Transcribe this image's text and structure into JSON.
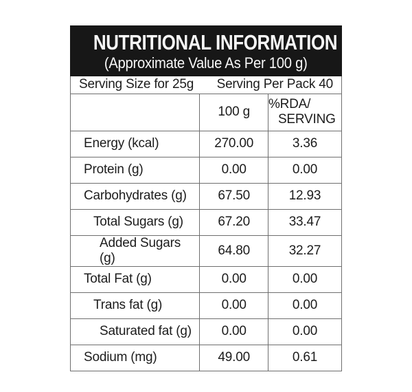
{
  "header": {
    "title": "NUTRITIONAL INFORMATION",
    "subtitle": "(Approximate Value As Per 100 g)"
  },
  "serving": {
    "size_label": "Serving Size for 25g",
    "per_pack_label": "Serving Per Pack 40"
  },
  "table": {
    "columns": {
      "nutrient": "",
      "amount": "100 g",
      "rda_line1": "%RDA/",
      "rda_line2": "SERVING"
    },
    "rows": [
      {
        "label": "Energy (kcal)",
        "amount": "270.00",
        "rda": "3.36",
        "indent": 0
      },
      {
        "label": "Protein (g)",
        "amount": "0.00",
        "rda": "0.00",
        "indent": 0
      },
      {
        "label": "Carbohydrates (g)",
        "amount": "67.50",
        "rda": "12.93",
        "indent": 0
      },
      {
        "label": "Total Sugars (g)",
        "amount": "67.20",
        "rda": "33.47",
        "indent": 1
      },
      {
        "label": "Added Sugars (g)",
        "amount": "64.80",
        "rda": "32.27",
        "indent": 2
      },
      {
        "label": "Total Fat (g)",
        "amount": "0.00",
        "rda": "0.00",
        "indent": 0
      },
      {
        "label": "Trans fat (g)",
        "amount": "0.00",
        "rda": "0.00",
        "indent": 1
      },
      {
        "label": "Saturated fat (g)",
        "amount": "0.00",
        "rda": "0.00",
        "indent": 2
      },
      {
        "label": "Sodium (mg)",
        "amount": "49.00",
        "rda": "0.61",
        "indent": 0
      }
    ]
  },
  "colors": {
    "banner_background": "#171717",
    "banner_text": "#f7f7f7",
    "border": "#6e6e6e",
    "body_text": "#1c1c1c",
    "page_background": "#ffffff"
  }
}
